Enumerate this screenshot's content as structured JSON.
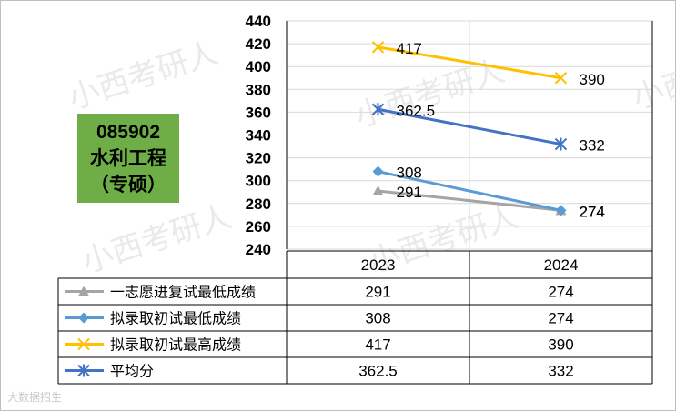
{
  "badge": {
    "code": "085902",
    "name": "水利工程",
    "type": "（专硕）"
  },
  "watermark_text": "小西考研人",
  "corner_mark": "大数据招生",
  "chart_data": {
    "type": "line",
    "categories": [
      "2023",
      "2024"
    ],
    "ylim": [
      240,
      440
    ],
    "yticks": [
      240,
      260,
      280,
      300,
      320,
      340,
      360,
      380,
      400,
      420,
      440
    ],
    "grid": true,
    "legend": "table-below",
    "series": [
      {
        "name": "一志愿进复试最低成绩",
        "values": [
          291,
          274
        ],
        "labels": [
          "291",
          "274"
        ],
        "color": "#a5a5a5",
        "marker": "triangle"
      },
      {
        "name": "拟录取初试最低成绩",
        "values": [
          308,
          274
        ],
        "labels": [
          "308",
          "274"
        ],
        "color": "#5b9bd5",
        "marker": "diamond"
      },
      {
        "name": "拟录取初试最高成绩",
        "values": [
          417,
          390
        ],
        "labels": [
          "417",
          "390"
        ],
        "color": "#ffc000",
        "marker": "x"
      },
      {
        "name": "平均分",
        "values": [
          362.5,
          332
        ],
        "labels": [
          "362.5",
          "332"
        ],
        "color": "#4472c4",
        "marker": "star"
      }
    ],
    "table_rows": [
      {
        "label": "一志愿进复试最低成绩",
        "cells": [
          "291",
          "274"
        ]
      },
      {
        "label": "拟录取初试最低成绩",
        "cells": [
          "308",
          "274"
        ]
      },
      {
        "label": "拟录取初试最高成绩",
        "cells": [
          "417",
          "390"
        ]
      },
      {
        "label": "平均分",
        "cells": [
          "362.5",
          "332"
        ]
      }
    ]
  }
}
